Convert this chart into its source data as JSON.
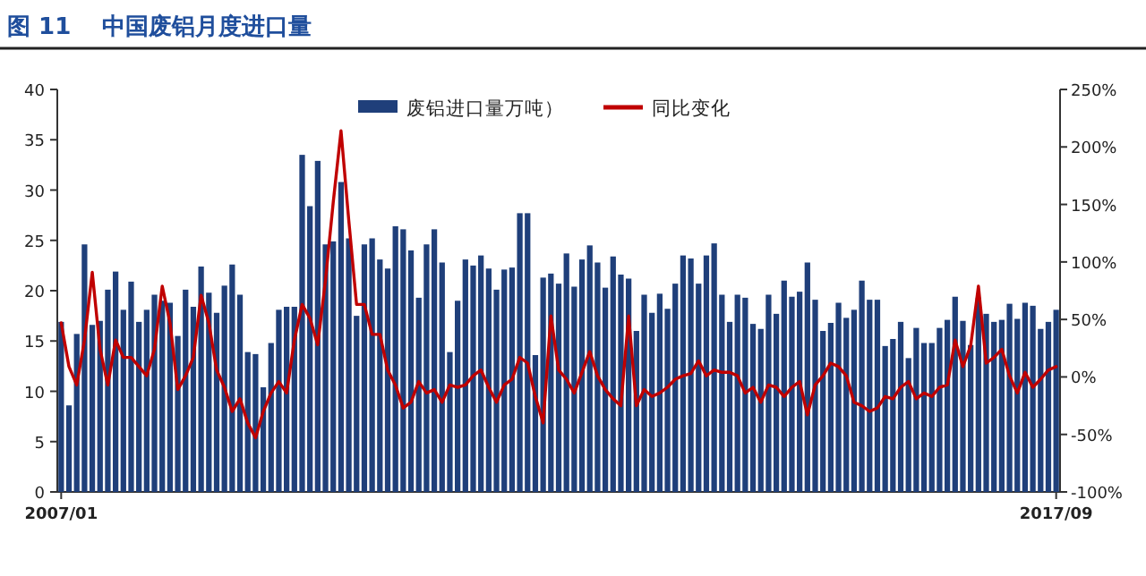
{
  "chart_data": {
    "type": "bar",
    "title": "图 11　 中国废铝月度进口量",
    "categories": [
      "2007/01",
      null,
      null,
      null,
      null,
      null,
      null,
      null,
      null,
      null,
      null,
      null,
      null,
      null,
      null,
      null,
      null,
      null,
      null,
      null,
      null,
      null,
      null,
      null,
      null,
      null,
      null,
      null,
      null,
      null,
      null,
      null,
      null,
      null,
      null,
      null,
      null,
      null,
      null,
      null,
      null,
      null,
      null,
      null,
      null,
      null,
      null,
      null,
      null,
      null,
      null,
      null,
      null,
      null,
      null,
      null,
      null,
      null,
      null,
      null,
      null,
      null,
      null,
      null,
      null,
      null,
      null,
      null,
      null,
      null,
      null,
      null,
      null,
      null,
      null,
      null,
      null,
      null,
      null,
      null,
      null,
      null,
      null,
      null,
      null,
      null,
      null,
      null,
      null,
      null,
      null,
      null,
      null,
      null,
      null,
      null,
      null,
      null,
      null,
      null,
      null,
      null,
      null,
      null,
      null,
      null,
      null,
      null,
      null,
      null,
      null,
      null,
      null,
      null,
      null,
      null,
      null,
      null,
      null,
      null,
      null,
      null,
      null,
      null,
      null,
      null,
      null,
      null,
      "2017/09"
    ],
    "series": [
      {
        "name": "废铝进口量万吨）",
        "color": "#1f3f7a",
        "values": [
          16.9,
          8.6,
          15.7,
          24.6,
          16.6,
          17,
          20.1,
          21.9,
          18.1,
          20.9,
          16.9,
          18.1,
          19.6,
          19,
          18.8,
          15.5,
          20.1,
          18.4,
          22.4,
          19.8,
          17.8,
          20.5,
          22.6,
          19.6,
          13.9,
          13.7,
          10.4,
          14.8,
          18.1,
          18.4,
          18.4,
          33.5,
          28.4,
          32.9,
          24.6,
          24.9,
          30.8,
          25.2,
          17.5,
          24.6,
          25.2,
          23.1,
          22.2,
          26.4,
          26.1,
          24,
          19.3,
          24.6,
          26.1,
          22.8,
          13.9,
          19,
          23.1,
          22.5,
          23.5,
          22.2,
          20.1,
          22.1,
          22.3,
          27.7,
          27.7,
          13.6,
          21.3,
          21.7,
          20.7,
          23.7,
          20.4,
          23.1,
          24.5,
          22.8,
          20.3,
          23.4,
          21.6,
          21.2,
          16,
          19.6,
          17.8,
          19.7,
          18.2,
          20.7,
          23.5,
          23.2,
          20.7,
          23.5,
          24.7,
          19.6,
          16.9,
          19.6,
          19.3,
          16.7,
          16.2,
          19.6,
          17.7,
          21,
          19.4,
          19.9,
          22.8,
          19.1,
          16,
          16.8,
          18.8,
          17.3,
          18.1,
          21,
          19.1,
          19.1,
          14.5,
          15.2,
          16.9,
          13.3,
          16.3,
          14.8,
          14.8,
          16.3,
          17.1,
          19.4,
          17,
          14.6,
          19.3,
          17.7,
          16.9,
          17.1,
          18.7,
          17.2,
          18.8,
          18.5,
          16.2,
          16.9,
          18.1
        ]
      },
      {
        "name": "同比变化",
        "type": "line",
        "axis": "y2",
        "color": "#c00000",
        "values": [
          47,
          9,
          -7,
          32,
          91,
          24,
          -7,
          32,
          17,
          17,
          9,
          1,
          24,
          79,
          47,
          -11,
          1,
          17,
          71,
          47,
          6,
          -9,
          -30,
          -19,
          -40,
          -53,
          -30,
          -14,
          -4,
          -14,
          32,
          63,
          51,
          28,
          84,
          152,
          214,
          136,
          63,
          63,
          37,
          37,
          6,
          -7,
          -27,
          -22,
          -4,
          -14,
          -11,
          -22,
          -7,
          -9,
          -7,
          1,
          6,
          -9,
          -22,
          -7,
          -2,
          17,
          12,
          -17,
          -40,
          53,
          6,
          -2,
          -14,
          4,
          22,
          1,
          -11,
          -19,
          -25,
          53,
          -25,
          -11,
          -17,
          -14,
          -9,
          -2,
          1,
          3,
          14,
          1,
          6,
          4,
          4,
          1,
          -14,
          -9,
          -22,
          -7,
          -9,
          -17,
          -9,
          -4,
          -33,
          -7,
          1,
          12,
          9,
          1,
          -22,
          -25,
          -30,
          -27,
          -17,
          -19,
          -9,
          -4,
          -19,
          -14,
          -17,
          -9,
          -7,
          32,
          9,
          27,
          79,
          12,
          17,
          24,
          1,
          -14,
          4,
          -9,
          -2,
          6,
          9
        ]
      }
    ],
    "ylim": [
      0,
      40
    ],
    "yticks": [
      0,
      5,
      10,
      15,
      20,
      25,
      30,
      35,
      40
    ],
    "y2lim": [
      -100,
      250
    ],
    "y2ticks": [
      {
        "value": -100,
        "label": "-100%"
      },
      {
        "value": -50,
        "label": "-50%"
      },
      {
        "value": 0,
        "label": "0%"
      },
      {
        "value": 50,
        "label": "50%"
      },
      {
        "value": 100,
        "label": "100%"
      },
      {
        "value": 150,
        "label": "150%"
      },
      {
        "value": 200,
        "label": "200%"
      },
      {
        "value": 250,
        "label": "250%"
      }
    ],
    "legend": "top"
  }
}
